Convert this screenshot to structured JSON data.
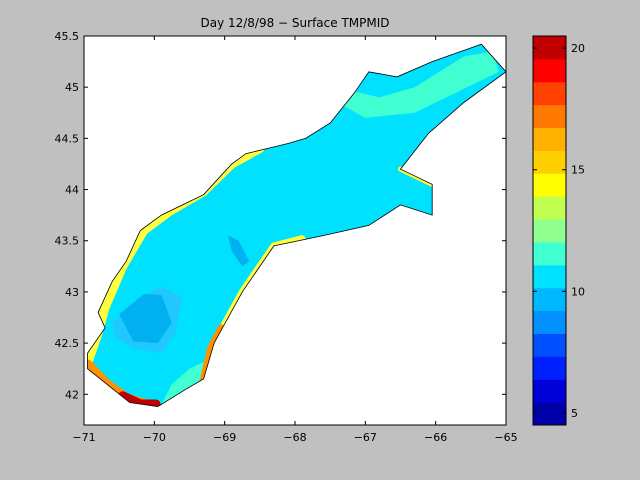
{
  "figure": {
    "background": "#c0c0c0",
    "axes_background": "#ffffff"
  },
  "chart_data": [
    {
      "type": "heatmap",
      "title": "Day 12/8/98 − Surface TMPMID",
      "xlabel": "",
      "ylabel": "",
      "xlim": [
        -71,
        -65
      ],
      "ylim": [
        41.7,
        45.5
      ],
      "x_ticks": [
        -71,
        -70,
        -69,
        -68,
        -67,
        -66,
        -65
      ],
      "x_tick_labels": [
        "−71",
        "−70",
        "−69",
        "−68",
        "−67",
        "−66",
        "−65"
      ],
      "y_ticks": [
        42,
        42.5,
        43,
        43.5,
        44,
        44.5,
        45,
        45.5
      ],
      "y_tick_labels": [
        "42",
        "42.5",
        "43",
        "43.5",
        "44",
        "44.5",
        "45",
        "45.5"
      ],
      "grid": false,
      "domain_outline": [
        [
          -70.35,
          41.92
        ],
        [
          -70.95,
          42.25
        ],
        [
          -70.95,
          42.4
        ],
        [
          -70.7,
          42.65
        ],
        [
          -70.8,
          42.8
        ],
        [
          -70.6,
          43.1
        ],
        [
          -70.4,
          43.3
        ],
        [
          -70.2,
          43.6
        ],
        [
          -69.9,
          43.75
        ],
        [
          -69.6,
          43.85
        ],
        [
          -69.3,
          43.95
        ],
        [
          -69.1,
          44.1
        ],
        [
          -68.9,
          44.25
        ],
        [
          -68.7,
          44.35
        ],
        [
          -68.4,
          44.4
        ],
        [
          -68.1,
          44.45
        ],
        [
          -67.85,
          44.5
        ],
        [
          -67.5,
          44.65
        ],
        [
          -67.15,
          44.95
        ],
        [
          -66.95,
          45.15
        ],
        [
          -66.55,
          45.1
        ],
        [
          -66.05,
          45.25
        ],
        [
          -65.35,
          45.42
        ],
        [
          -65.0,
          45.15
        ],
        [
          -65.6,
          44.85
        ],
        [
          -66.1,
          44.55
        ],
        [
          -66.5,
          44.2
        ],
        [
          -66.35,
          44.15
        ],
        [
          -66.05,
          44.05
        ],
        [
          -66.05,
          43.75
        ],
        [
          -66.5,
          43.85
        ],
        [
          -66.95,
          43.65
        ],
        [
          -67.6,
          43.55
        ],
        [
          -68.3,
          43.45
        ],
        [
          -68.75,
          43.0
        ],
        [
          -69.15,
          42.5
        ],
        [
          -69.3,
          42.15
        ],
        [
          -69.55,
          42.05
        ],
        [
          -69.95,
          41.88
        ]
      ],
      "colormap": [
        "#00008f",
        "#0000ff",
        "#0060ff",
        "#00a8ff",
        "#00e0ff",
        "#30ffcf",
        "#90ff70",
        "#ffff00",
        "#ffb000",
        "#ff6000",
        "#ff0000",
        "#a00000"
      ],
      "temperature_regions": [
        {
          "level": 10,
          "color": "#00e0ff"
        },
        {
          "level": 9,
          "color": "#20c8ff"
        },
        {
          "level": 8.5,
          "color": "#00b0f0"
        },
        {
          "level": 11,
          "color": "#40ffd0"
        },
        {
          "level": 13,
          "color": "#ffff40"
        },
        {
          "level": 16,
          "color": "#ff9000"
        },
        {
          "level": 19,
          "color": "#c00000"
        }
      ],
      "colorbar": {
        "min": 4.5,
        "max": 20.5,
        "tick_values": [
          5,
          10,
          15,
          20
        ],
        "tick_labels": [
          "5",
          "10",
          "15",
          "20"
        ],
        "bands": [
          "#0000a8",
          "#0000d8",
          "#0020ff",
          "#0050ff",
          "#0090ff",
          "#00b8ff",
          "#00e0ff",
          "#40ffd0",
          "#90ff90",
          "#c0ff50",
          "#ffff00",
          "#ffd000",
          "#ffb000",
          "#ff7800",
          "#ff4000",
          "#ff0000",
          "#c00000"
        ]
      }
    }
  ]
}
